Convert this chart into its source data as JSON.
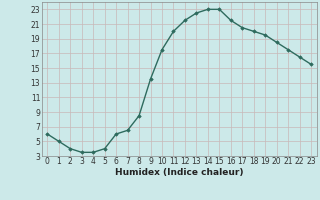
{
  "xlabel": "Humidex (Indice chaleur)",
  "x": [
    0,
    1,
    2,
    3,
    4,
    5,
    6,
    7,
    8,
    9,
    10,
    11,
    12,
    13,
    14,
    15,
    16,
    17,
    18,
    19,
    20,
    21,
    22,
    23
  ],
  "y": [
    6,
    5,
    4,
    3.5,
    3.5,
    4,
    6,
    6.5,
    8.5,
    13.5,
    17.5,
    20,
    21.5,
    22.5,
    23,
    23,
    21.5,
    20.5,
    20,
    19.5,
    18.5,
    17.5,
    16.5,
    15.5
  ],
  "line_color": "#2e6b5e",
  "marker": "D",
  "marker_size": 1.8,
  "bg_color": "#cce9e9",
  "grid_color": "#b8d8d8",
  "ylim": [
    3,
    24
  ],
  "yticks": [
    3,
    5,
    7,
    9,
    11,
    13,
    15,
    17,
    19,
    21,
    23
  ],
  "xlim": [
    -0.5,
    23.5
  ],
  "xticks": [
    0,
    1,
    2,
    3,
    4,
    5,
    6,
    7,
    8,
    9,
    10,
    11,
    12,
    13,
    14,
    15,
    16,
    17,
    18,
    19,
    20,
    21,
    22,
    23
  ],
  "tick_label_fontsize": 5.5,
  "xlabel_fontsize": 6.5,
  "line_width": 1.0
}
